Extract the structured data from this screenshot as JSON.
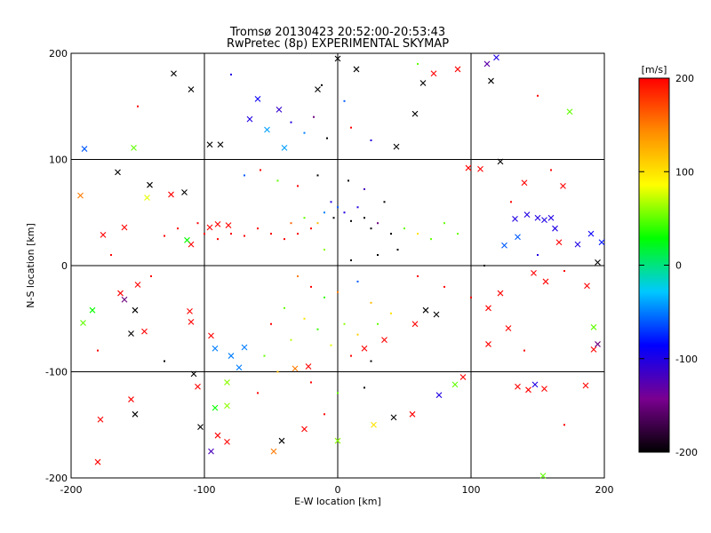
{
  "chart_data": {
    "type": "scatter",
    "title": [
      "Tromsø 20130423 20:52:00-20:53:43",
      "RwPretec (8p) EXPERIMENTAL SKYMAP"
    ],
    "xlabel": "E-W location [km]",
    "ylabel": "N-S location [km]",
    "xlim": [
      -200,
      200
    ],
    "ylim": [
      -200,
      200
    ],
    "x_ticks": [
      -200,
      -100,
      0,
      100,
      200
    ],
    "y_ticks": [
      -200,
      -100,
      0,
      100,
      200
    ],
    "x_tick_labels": [
      "-200",
      "-100",
      "0",
      "100",
      "200"
    ],
    "y_tick_labels": [
      "-200",
      "-100",
      "0",
      "100",
      "200"
    ],
    "grid": true,
    "marker_types": [
      "x",
      "dot"
    ],
    "colorbar": {
      "label": "[m/s]",
      "range": [
        -200,
        200
      ],
      "ticks": [
        200,
        100,
        0,
        -100,
        -200
      ],
      "tick_labels": [
        "200",
        "100",
        "0",
        "-100",
        "-200"
      ],
      "colormap": [
        "#000000",
        "#7a0090",
        "#0000ff",
        "#00c8ff",
        "#00ff00",
        "#ffff00",
        "#ff8c00",
        "#ff0000"
      ]
    },
    "points": [
      {
        "x": -123,
        "y": 181,
        "v": -200,
        "m": "x"
      },
      {
        "x": -110,
        "y": 166,
        "v": -200,
        "m": "x"
      },
      {
        "x": -96,
        "y": 114,
        "v": -200,
        "m": "x"
      },
      {
        "x": -88,
        "y": 114,
        "v": -200,
        "m": "x"
      },
      {
        "x": -66,
        "y": 138,
        "v": -100,
        "m": "x"
      },
      {
        "x": -60,
        "y": 157,
        "v": -90,
        "m": "x"
      },
      {
        "x": -53,
        "y": 128,
        "v": -40,
        "m": "x"
      },
      {
        "x": -40,
        "y": 111,
        "v": -40,
        "m": "x"
      },
      {
        "x": -44,
        "y": 147,
        "v": -110,
        "m": "x"
      },
      {
        "x": -15,
        "y": 166,
        "v": -200,
        "m": "x"
      },
      {
        "x": 0,
        "y": 195,
        "v": -200,
        "m": "x"
      },
      {
        "x": 14,
        "y": 185,
        "v": -200,
        "m": "x"
      },
      {
        "x": 44,
        "y": 112,
        "v": -200,
        "m": "x"
      },
      {
        "x": 58,
        "y": 143,
        "v": -200,
        "m": "x"
      },
      {
        "x": 64,
        "y": 172,
        "v": -200,
        "m": "x"
      },
      {
        "x": 72,
        "y": 181,
        "v": 200,
        "m": "x"
      },
      {
        "x": 90,
        "y": 185,
        "v": 200,
        "m": "x"
      },
      {
        "x": 112,
        "y": 190,
        "v": -130,
        "m": "x"
      },
      {
        "x": 115,
        "y": 174,
        "v": -200,
        "m": "x"
      },
      {
        "x": 119,
        "y": 196,
        "v": -100,
        "m": "x"
      },
      {
        "x": 174,
        "y": 145,
        "v": 50,
        "m": "x"
      },
      {
        "x": -190,
        "y": 110,
        "v": -60,
        "m": "x"
      },
      {
        "x": -153,
        "y": 111,
        "v": 50,
        "m": "x"
      },
      {
        "x": -165,
        "y": 88,
        "v": -200,
        "m": "x"
      },
      {
        "x": -141,
        "y": 76,
        "v": -200,
        "m": "x"
      },
      {
        "x": -143,
        "y": 64,
        "v": 80,
        "m": "x"
      },
      {
        "x": -125,
        "y": 67,
        "v": 200,
        "m": "x"
      },
      {
        "x": -115,
        "y": 69,
        "v": -200,
        "m": "x"
      },
      {
        "x": -96,
        "y": 36,
        "v": 200,
        "m": "x"
      },
      {
        "x": -90,
        "y": 39,
        "v": 200,
        "m": "x"
      },
      {
        "x": -82,
        "y": 38,
        "v": 200,
        "m": "x"
      },
      {
        "x": -110,
        "y": 20,
        "v": 200,
        "m": "x"
      },
      {
        "x": -113,
        "y": 24,
        "v": 30,
        "m": "x"
      },
      {
        "x": -160,
        "y": 36,
        "v": 200,
        "m": "x"
      },
      {
        "x": -176,
        "y": 29,
        "v": 200,
        "m": "x"
      },
      {
        "x": -193,
        "y": 66,
        "v": 150,
        "m": "x"
      },
      {
        "x": 98,
        "y": 92,
        "v": 200,
        "m": "x"
      },
      {
        "x": 107,
        "y": 91,
        "v": 200,
        "m": "x"
      },
      {
        "x": 122,
        "y": 98,
        "v": -200,
        "m": "x"
      },
      {
        "x": 140,
        "y": 78,
        "v": 200,
        "m": "x"
      },
      {
        "x": 169,
        "y": 75,
        "v": 200,
        "m": "x"
      },
      {
        "x": 133,
        "y": 44,
        "v": -100,
        "m": "x"
      },
      {
        "x": 142,
        "y": 48,
        "v": -100,
        "m": "x"
      },
      {
        "x": 150,
        "y": 45,
        "v": -100,
        "m": "x"
      },
      {
        "x": 155,
        "y": 43,
        "v": -100,
        "m": "x"
      },
      {
        "x": 160,
        "y": 45,
        "v": -100,
        "m": "x"
      },
      {
        "x": 163,
        "y": 35,
        "v": -100,
        "m": "x"
      },
      {
        "x": 166,
        "y": 22,
        "v": 200,
        "m": "x"
      },
      {
        "x": 180,
        "y": 20,
        "v": -100,
        "m": "x"
      },
      {
        "x": 190,
        "y": 30,
        "v": -90,
        "m": "x"
      },
      {
        "x": 198,
        "y": 22,
        "v": -80,
        "m": "x"
      },
      {
        "x": 125,
        "y": 19,
        "v": -60,
        "m": "x"
      },
      {
        "x": 135,
        "y": 27,
        "v": -60,
        "m": "x"
      },
      {
        "x": 195,
        "y": 3,
        "v": -200,
        "m": "x"
      },
      {
        "x": 147,
        "y": -7,
        "v": 200,
        "m": "x"
      },
      {
        "x": 156,
        "y": -15,
        "v": 200,
        "m": "x"
      },
      {
        "x": 187,
        "y": -19,
        "v": 200,
        "m": "x"
      },
      {
        "x": 122,
        "y": -26,
        "v": 200,
        "m": "x"
      },
      {
        "x": 113,
        "y": -40,
        "v": 200,
        "m": "x"
      },
      {
        "x": 192,
        "y": -58,
        "v": 50,
        "m": "x"
      },
      {
        "x": 195,
        "y": -74,
        "v": -150,
        "m": "x"
      },
      {
        "x": 192,
        "y": -79,
        "v": 200,
        "m": "x"
      },
      {
        "x": 128,
        "y": -59,
        "v": 200,
        "m": "x"
      },
      {
        "x": 113,
        "y": -74,
        "v": 200,
        "m": "x"
      },
      {
        "x": -160,
        "y": -32,
        "v": -150,
        "m": "x"
      },
      {
        "x": -163,
        "y": -26,
        "v": 200,
        "m": "x"
      },
      {
        "x": -150,
        "y": -18,
        "v": 200,
        "m": "x"
      },
      {
        "x": -152,
        "y": -42,
        "v": -200,
        "m": "x"
      },
      {
        "x": -184,
        "y": -42,
        "v": 30,
        "m": "x"
      },
      {
        "x": -191,
        "y": -54,
        "v": 50,
        "m": "x"
      },
      {
        "x": -155,
        "y": -64,
        "v": -200,
        "m": "x"
      },
      {
        "x": -145,
        "y": -62,
        "v": 200,
        "m": "x"
      },
      {
        "x": -111,
        "y": -43,
        "v": 200,
        "m": "x"
      },
      {
        "x": -110,
        "y": -53,
        "v": 200,
        "m": "x"
      },
      {
        "x": -95,
        "y": -66,
        "v": 200,
        "m": "x"
      },
      {
        "x": -92,
        "y": -78,
        "v": -50,
        "m": "x"
      },
      {
        "x": -80,
        "y": -85,
        "v": -50,
        "m": "x"
      },
      {
        "x": -70,
        "y": -77,
        "v": -50,
        "m": "x"
      },
      {
        "x": -74,
        "y": -96,
        "v": -50,
        "m": "x"
      },
      {
        "x": -83,
        "y": -110,
        "v": 60,
        "m": "x"
      },
      {
        "x": -108,
        "y": -102,
        "v": -200,
        "m": "x"
      },
      {
        "x": -105,
        "y": -114,
        "v": 200,
        "m": "x"
      },
      {
        "x": -155,
        "y": -126,
        "v": 200,
        "m": "x"
      },
      {
        "x": -152,
        "y": -140,
        "v": -200,
        "m": "x"
      },
      {
        "x": -178,
        "y": -145,
        "v": 200,
        "m": "x"
      },
      {
        "x": -180,
        "y": -185,
        "v": 200,
        "m": "x"
      },
      {
        "x": -103,
        "y": -152,
        "v": -200,
        "m": "x"
      },
      {
        "x": -90,
        "y": -160,
        "v": 200,
        "m": "x"
      },
      {
        "x": -83,
        "y": -166,
        "v": 200,
        "m": "x"
      },
      {
        "x": -92,
        "y": -134,
        "v": 30,
        "m": "x"
      },
      {
        "x": -83,
        "y": -132,
        "v": 60,
        "m": "x"
      },
      {
        "x": -95,
        "y": -175,
        "v": -120,
        "m": "x"
      },
      {
        "x": -42,
        "y": -165,
        "v": -200,
        "m": "x"
      },
      {
        "x": -48,
        "y": -175,
        "v": 150,
        "m": "x"
      },
      {
        "x": -25,
        "y": -154,
        "v": 200,
        "m": "x"
      },
      {
        "x": 0,
        "y": -165,
        "v": 60,
        "m": "x"
      },
      {
        "x": 27,
        "y": -150,
        "v": 100,
        "m": "x"
      },
      {
        "x": 42,
        "y": -143,
        "v": -200,
        "m": "x"
      },
      {
        "x": 56,
        "y": -140,
        "v": 200,
        "m": "x"
      },
      {
        "x": 76,
        "y": -122,
        "v": -100,
        "m": "x"
      },
      {
        "x": 88,
        "y": -112,
        "v": 50,
        "m": "x"
      },
      {
        "x": 94,
        "y": -105,
        "v": 200,
        "m": "x"
      },
      {
        "x": 135,
        "y": -114,
        "v": 200,
        "m": "x"
      },
      {
        "x": 143,
        "y": -117,
        "v": 200,
        "m": "x"
      },
      {
        "x": 148,
        "y": -112,
        "v": -100,
        "m": "x"
      },
      {
        "x": 155,
        "y": -116,
        "v": 200,
        "m": "x"
      },
      {
        "x": 186,
        "y": -113,
        "v": 200,
        "m": "x"
      },
      {
        "x": 154,
        "y": -198,
        "v": 50,
        "m": "x"
      },
      {
        "x": -22,
        "y": -95,
        "v": 200,
        "m": "x"
      },
      {
        "x": -32,
        "y": -97,
        "v": 150,
        "m": "x"
      },
      {
        "x": 20,
        "y": -78,
        "v": 200,
        "m": "x"
      },
      {
        "x": 35,
        "y": -70,
        "v": 200,
        "m": "x"
      },
      {
        "x": 66,
        "y": -42,
        "v": -200,
        "m": "x"
      },
      {
        "x": 74,
        "y": -46,
        "v": -200,
        "m": "x"
      },
      {
        "x": 58,
        "y": -55,
        "v": 200,
        "m": "x"
      },
      {
        "x": 5,
        "y": 155,
        "v": -60,
        "m": "dot"
      },
      {
        "x": -12,
        "y": 170,
        "v": -200,
        "m": "dot"
      },
      {
        "x": -18,
        "y": 140,
        "v": -150,
        "m": "dot"
      },
      {
        "x": -8,
        "y": 120,
        "v": -200,
        "m": "dot"
      },
      {
        "x": 10,
        "y": 130,
        "v": 200,
        "m": "dot"
      },
      {
        "x": 25,
        "y": 118,
        "v": -100,
        "m": "dot"
      },
      {
        "x": -35,
        "y": 135,
        "v": -100,
        "m": "dot"
      },
      {
        "x": -25,
        "y": 125,
        "v": -50,
        "m": "dot"
      },
      {
        "x": -58,
        "y": 90,
        "v": 200,
        "m": "dot"
      },
      {
        "x": -70,
        "y": 85,
        "v": -60,
        "m": "dot"
      },
      {
        "x": -45,
        "y": 80,
        "v": 50,
        "m": "dot"
      },
      {
        "x": -30,
        "y": 75,
        "v": 200,
        "m": "dot"
      },
      {
        "x": -15,
        "y": 85,
        "v": -200,
        "m": "dot"
      },
      {
        "x": 8,
        "y": 80,
        "v": -200,
        "m": "dot"
      },
      {
        "x": 20,
        "y": 72,
        "v": -120,
        "m": "dot"
      },
      {
        "x": 35,
        "y": 60,
        "v": -200,
        "m": "dot"
      },
      {
        "x": -5,
        "y": 60,
        "v": -100,
        "m": "dot"
      },
      {
        "x": 0,
        "y": 55,
        "v": -60,
        "m": "dot"
      },
      {
        "x": 5,
        "y": 50,
        "v": -100,
        "m": "dot"
      },
      {
        "x": -3,
        "y": 45,
        "v": -200,
        "m": "dot"
      },
      {
        "x": 10,
        "y": 42,
        "v": -200,
        "m": "dot"
      },
      {
        "x": -10,
        "y": 50,
        "v": -50,
        "m": "dot"
      },
      {
        "x": 15,
        "y": 55,
        "v": -100,
        "m": "dot"
      },
      {
        "x": 20,
        "y": 45,
        "v": -200,
        "m": "dot"
      },
      {
        "x": 25,
        "y": 35,
        "v": -200,
        "m": "dot"
      },
      {
        "x": 30,
        "y": 40,
        "v": -150,
        "m": "dot"
      },
      {
        "x": 40,
        "y": 30,
        "v": -200,
        "m": "dot"
      },
      {
        "x": -15,
        "y": 40,
        "v": 120,
        "m": "dot"
      },
      {
        "x": -20,
        "y": 35,
        "v": 200,
        "m": "dot"
      },
      {
        "x": -25,
        "y": 45,
        "v": 50,
        "m": "dot"
      },
      {
        "x": -30,
        "y": 30,
        "v": 200,
        "m": "dot"
      },
      {
        "x": -35,
        "y": 40,
        "v": 160,
        "m": "dot"
      },
      {
        "x": -40,
        "y": 25,
        "v": 200,
        "m": "dot"
      },
      {
        "x": -50,
        "y": 30,
        "v": 200,
        "m": "dot"
      },
      {
        "x": -60,
        "y": 35,
        "v": 200,
        "m": "dot"
      },
      {
        "x": -70,
        "y": 28,
        "v": 200,
        "m": "dot"
      },
      {
        "x": -80,
        "y": 30,
        "v": 200,
        "m": "dot"
      },
      {
        "x": -90,
        "y": 25,
        "v": 200,
        "m": "dot"
      },
      {
        "x": -100,
        "y": 30,
        "v": 200,
        "m": "dot"
      },
      {
        "x": -105,
        "y": 40,
        "v": 200,
        "m": "dot"
      },
      {
        "x": -120,
        "y": 35,
        "v": 200,
        "m": "dot"
      },
      {
        "x": -130,
        "y": 28,
        "v": 200,
        "m": "dot"
      },
      {
        "x": 50,
        "y": 35,
        "v": 50,
        "m": "dot"
      },
      {
        "x": 60,
        "y": 30,
        "v": 100,
        "m": "dot"
      },
      {
        "x": 70,
        "y": 25,
        "v": 50,
        "m": "dot"
      },
      {
        "x": 80,
        "y": 40,
        "v": 50,
        "m": "dot"
      },
      {
        "x": 90,
        "y": 30,
        "v": 50,
        "m": "dot"
      },
      {
        "x": 45,
        "y": 15,
        "v": -200,
        "m": "dot"
      },
      {
        "x": 30,
        "y": 10,
        "v": -200,
        "m": "dot"
      },
      {
        "x": 10,
        "y": 5,
        "v": -200,
        "m": "dot"
      },
      {
        "x": -10,
        "y": 15,
        "v": 60,
        "m": "dot"
      },
      {
        "x": -30,
        "y": -10,
        "v": 150,
        "m": "dot"
      },
      {
        "x": -20,
        "y": -20,
        "v": 200,
        "m": "dot"
      },
      {
        "x": -10,
        "y": -30,
        "v": 40,
        "m": "dot"
      },
      {
        "x": 0,
        "y": -25,
        "v": 150,
        "m": "dot"
      },
      {
        "x": 15,
        "y": -15,
        "v": -60,
        "m": "dot"
      },
      {
        "x": 25,
        "y": -35,
        "v": 120,
        "m": "dot"
      },
      {
        "x": -40,
        "y": -40,
        "v": 50,
        "m": "dot"
      },
      {
        "x": -50,
        "y": -55,
        "v": 200,
        "m": "dot"
      },
      {
        "x": -25,
        "y": -50,
        "v": 100,
        "m": "dot"
      },
      {
        "x": -15,
        "y": -60,
        "v": 40,
        "m": "dot"
      },
      {
        "x": 5,
        "y": -55,
        "v": 60,
        "m": "dot"
      },
      {
        "x": 15,
        "y": -65,
        "v": 110,
        "m": "dot"
      },
      {
        "x": 30,
        "y": -55,
        "v": 50,
        "m": "dot"
      },
      {
        "x": 40,
        "y": -45,
        "v": 100,
        "m": "dot"
      },
      {
        "x": -35,
        "y": -70,
        "v": 70,
        "m": "dot"
      },
      {
        "x": -5,
        "y": -75,
        "v": 80,
        "m": "dot"
      },
      {
        "x": 10,
        "y": -85,
        "v": 200,
        "m": "dot"
      },
      {
        "x": 25,
        "y": -90,
        "v": -200,
        "m": "dot"
      },
      {
        "x": -55,
        "y": -85,
        "v": 50,
        "m": "dot"
      },
      {
        "x": -45,
        "y": -100,
        "v": 120,
        "m": "dot"
      },
      {
        "x": -20,
        "y": -110,
        "v": 200,
        "m": "dot"
      },
      {
        "x": 0,
        "y": -120,
        "v": 50,
        "m": "dot"
      },
      {
        "x": 20,
        "y": -115,
        "v": -200,
        "m": "dot"
      },
      {
        "x": -60,
        "y": -120,
        "v": 200,
        "m": "dot"
      },
      {
        "x": -10,
        "y": -140,
        "v": 200,
        "m": "dot"
      },
      {
        "x": 60,
        "y": -10,
        "v": 200,
        "m": "dot"
      },
      {
        "x": 80,
        "y": -20,
        "v": 200,
        "m": "dot"
      },
      {
        "x": 100,
        "y": -30,
        "v": 200,
        "m": "dot"
      },
      {
        "x": 110,
        "y": 0,
        "v": -200,
        "m": "dot"
      },
      {
        "x": 150,
        "y": 10,
        "v": -100,
        "m": "dot"
      },
      {
        "x": 170,
        "y": -5,
        "v": 200,
        "m": "dot"
      },
      {
        "x": 130,
        "y": 60,
        "v": 200,
        "m": "dot"
      },
      {
        "x": 160,
        "y": 90,
        "v": 200,
        "m": "dot"
      },
      {
        "x": -140,
        "y": -10,
        "v": 200,
        "m": "dot"
      },
      {
        "x": -170,
        "y": 10,
        "v": 200,
        "m": "dot"
      },
      {
        "x": -180,
        "y": -80,
        "v": 200,
        "m": "dot"
      },
      {
        "x": -130,
        "y": -90,
        "v": -200,
        "m": "dot"
      },
      {
        "x": 140,
        "y": -80,
        "v": 200,
        "m": "dot"
      },
      {
        "x": 170,
        "y": -150,
        "v": 200,
        "m": "dot"
      },
      {
        "x": -150,
        "y": 150,
        "v": 200,
        "m": "dot"
      },
      {
        "x": 150,
        "y": 160,
        "v": 200,
        "m": "dot"
      },
      {
        "x": -80,
        "y": 180,
        "v": -100,
        "m": "dot"
      },
      {
        "x": 60,
        "y": 190,
        "v": 50,
        "m": "dot"
      }
    ]
  }
}
